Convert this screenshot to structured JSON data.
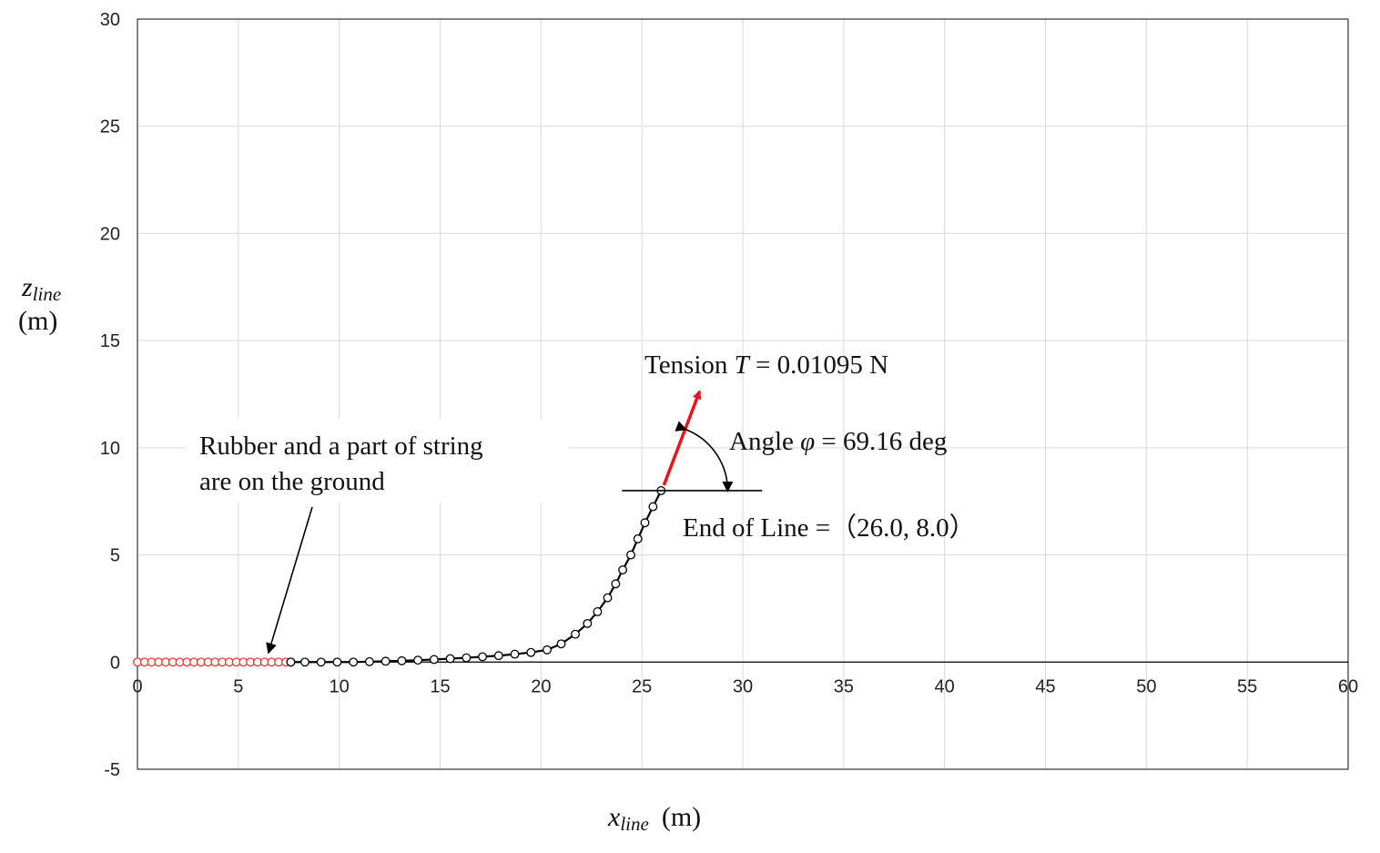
{
  "chart_data": {
    "type": "scatter",
    "xlabel": {
      "symbol": "x",
      "subscript": "line",
      "unit": "(m)"
    },
    "ylabel": {
      "symbol": "z",
      "subscript": "line",
      "unit": "(m)"
    },
    "xlim": [
      0,
      60
    ],
    "ylim": [
      -5,
      30
    ],
    "x_ticks": [
      0,
      5,
      10,
      15,
      20,
      25,
      30,
      35,
      40,
      45,
      50,
      55,
      60
    ],
    "y_ticks": [
      -5,
      0,
      5,
      10,
      15,
      20,
      25,
      30
    ],
    "grid": true,
    "legend": "none",
    "series": [
      {
        "color": "#e0403a",
        "marker": "open-circle",
        "line": false,
        "points": [
          [
            0,
            0
          ],
          [
            0.35,
            0
          ],
          [
            0.7,
            0
          ],
          [
            1.05,
            0
          ],
          [
            1.4,
            0
          ],
          [
            1.75,
            0
          ],
          [
            2.1,
            0
          ],
          [
            2.45,
            0
          ],
          [
            2.8,
            0
          ],
          [
            3.15,
            0
          ],
          [
            3.5,
            0
          ],
          [
            3.85,
            0
          ],
          [
            4.2,
            0
          ],
          [
            4.55,
            0
          ],
          [
            4.9,
            0
          ],
          [
            5.25,
            0
          ],
          [
            5.6,
            0
          ],
          [
            5.95,
            0
          ],
          [
            6.3,
            0
          ],
          [
            6.65,
            0
          ],
          [
            7.0,
            0
          ],
          [
            7.35,
            0
          ],
          [
            7.6,
            0
          ]
        ]
      },
      {
        "color": "#000000",
        "marker": "open-circle",
        "line": true,
        "points": [
          [
            7.6,
            0
          ],
          [
            8.3,
            0
          ],
          [
            9.1,
            0
          ],
          [
            9.9,
            0
          ],
          [
            10.7,
            0
          ],
          [
            11.5,
            0.02
          ],
          [
            12.3,
            0.04
          ],
          [
            13.1,
            0.06
          ],
          [
            13.9,
            0.09
          ],
          [
            14.7,
            0.12
          ],
          [
            15.5,
            0.16
          ],
          [
            16.3,
            0.2
          ],
          [
            17.1,
            0.25
          ],
          [
            17.9,
            0.3
          ],
          [
            18.7,
            0.37
          ],
          [
            19.5,
            0.45
          ],
          [
            20.3,
            0.57
          ],
          [
            21.0,
            0.85
          ],
          [
            21.7,
            1.3
          ],
          [
            22.3,
            1.8
          ],
          [
            22.8,
            2.35
          ],
          [
            23.3,
            3.0
          ],
          [
            23.7,
            3.65
          ],
          [
            24.05,
            4.3
          ],
          [
            24.45,
            5.0
          ],
          [
            24.8,
            5.75
          ],
          [
            25.15,
            6.5
          ],
          [
            25.55,
            7.25
          ],
          [
            25.95,
            8.0
          ]
        ]
      }
    ],
    "annotations": {
      "tension_prefix": "Tension ",
      "tension_symbol": "T",
      "tension_suffix": " = 0.01095 N",
      "angle_prefix": "Angle ",
      "angle_symbol": "φ",
      "angle_suffix": " = 69.16 deg",
      "end_of_line": "End of Line =（26.0, 8.0）",
      "ground_line1": "Rubber and a part of string",
      "ground_line2": "are on the ground",
      "tension_angle_deg": 69.16,
      "end_point": [
        26.0,
        8.0
      ],
      "ground_arrow_target": [
        6.5,
        0.2
      ],
      "tension_color": "#e8141b"
    }
  }
}
